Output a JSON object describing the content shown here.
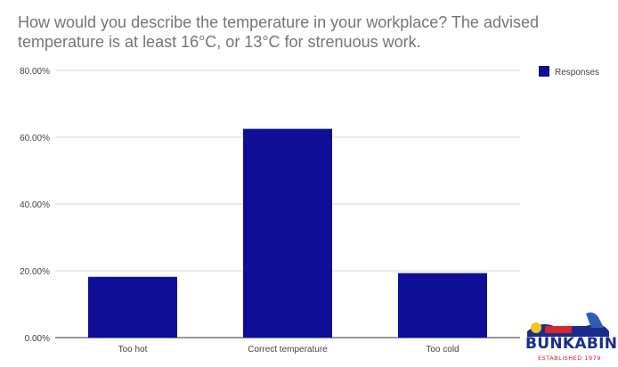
{
  "chart_data": {
    "type": "bar",
    "title": "How would you describe the temperature in your workplace? The advised temperature is at least 16°C, or 13°C for strenuous work.",
    "categories": [
      "Too hot",
      "Correct temperature",
      "Too cold"
    ],
    "series": [
      {
        "name": "Responses",
        "values": [
          18.2,
          62.5,
          19.3
        ]
      }
    ],
    "ylim": [
      0,
      80
    ],
    "yticks": [
      "0.00%",
      "20.00%",
      "40.00%",
      "60.00%",
      "80.00%"
    ],
    "ytick_values": [
      0,
      20,
      40,
      60,
      80
    ],
    "xlabel": "",
    "ylabel": "",
    "grid": true,
    "legend_position": "top-right",
    "bar_color": "#0f0e96"
  },
  "logo": {
    "word": "BUNKABIN",
    "tagline": "ESTABLISHED 1979"
  }
}
